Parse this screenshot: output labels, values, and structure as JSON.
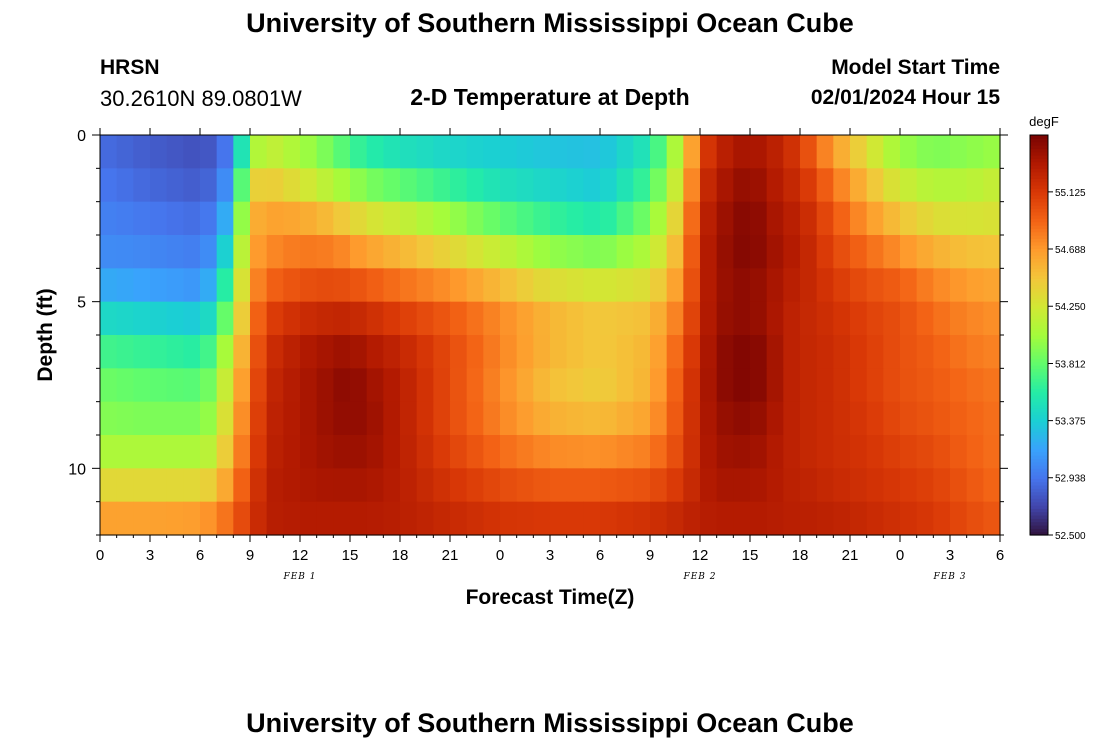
{
  "page": {
    "title_top": "University of Southern Mississippi Ocean Cube",
    "title_bottom": "University of Southern Mississippi Ocean Cube",
    "station_code": "HRSN",
    "coordinates": "30.2610N  89.0801W",
    "subtitle": "2-D Temperature at Depth",
    "model_start_label": "Model Start Time",
    "model_start_value": "02/01/2024 Hour 15"
  },
  "chart_data": {
    "type": "heatmap",
    "title": "2-D Temperature at Depth",
    "xlabel": "Forecast Time(Z)",
    "ylabel": "Depth (ft)",
    "x_ticks": [
      "0",
      "3",
      "6",
      "9",
      "12",
      "15",
      "18",
      "21",
      "0",
      "3",
      "6",
      "9",
      "12",
      "15",
      "18",
      "21",
      "0",
      "3",
      "6"
    ],
    "x_range_hours": [
      0,
      54
    ],
    "y_range_ft": [
      0,
      12
    ],
    "y_ticks": [
      0,
      5,
      10
    ],
    "y_reversed": true,
    "date_labels": [
      {
        "label": "FEB 1",
        "hour": 12
      },
      {
        "label": "FEB 2",
        "hour": 36
      },
      {
        "label": "FEB 3",
        "hour": 51
      }
    ],
    "colorbar": {
      "unit": "degF",
      "min": 52.5,
      "max": 55.56,
      "tick_values": [
        52.5,
        52.938,
        53.375,
        53.812,
        54.25,
        54.688,
        55.125
      ],
      "tick_labels": [
        "52.500",
        "52.938",
        "53.375",
        "53.812",
        "54.250",
        "54.688",
        "55.125"
      ],
      "colors": [
        "#30123b",
        "#4145ab",
        "#4675ed",
        "#39a2fc",
        "#1bcfd4",
        "#24eca6",
        "#61fc6c",
        "#a4fc3b",
        "#d1e834",
        "#f3c63a",
        "#fe9b2d",
        "#f36315",
        "#d93806",
        "#b11901",
        "#7a0402"
      ]
    },
    "grid": false,
    "temperature_degF": {
      "depths_ft": [
        0,
        1,
        2,
        3,
        4,
        5,
        6,
        7,
        8,
        9,
        10,
        11,
        12
      ],
      "hours": [
        0,
        3,
        6,
        7,
        8,
        9,
        10,
        12,
        14,
        15,
        16,
        18,
        21,
        24,
        27,
        30,
        33,
        35,
        36,
        37,
        38,
        39,
        40,
        41,
        42,
        44,
        46,
        48,
        50,
        52,
        54
      ],
      "values": [
        [
          52.9,
          52.8,
          52.75,
          52.8,
          53.0,
          53.8,
          54.1,
          54.0,
          53.8,
          53.6,
          53.5,
          53.4,
          53.35,
          53.35,
          53.3,
          53.3,
          53.5,
          54.2,
          55.0,
          55.2,
          55.3,
          55.35,
          55.3,
          55.25,
          55.05,
          54.6,
          54.2,
          53.9,
          53.8,
          53.8,
          53.8
        ],
        [
          52.9,
          52.85,
          52.8,
          52.85,
          53.1,
          54.2,
          54.3,
          54.1,
          53.9,
          53.8,
          53.7,
          53.6,
          53.5,
          53.4,
          53.35,
          53.3,
          53.6,
          54.3,
          55.1,
          55.3,
          55.4,
          55.45,
          55.35,
          55.25,
          55.15,
          54.75,
          54.45,
          54.1,
          54.0,
          54.1,
          54.2
        ],
        [
          53.0,
          52.9,
          52.85,
          52.95,
          53.3,
          54.5,
          54.6,
          54.5,
          54.3,
          54.2,
          54.1,
          54.0,
          53.8,
          53.6,
          53.5,
          53.4,
          53.8,
          54.45,
          55.2,
          55.35,
          55.45,
          55.5,
          55.4,
          55.3,
          55.25,
          54.95,
          54.6,
          54.35,
          54.2,
          54.15,
          54.2
        ],
        [
          53.0,
          53.0,
          52.95,
          53.05,
          53.5,
          54.6,
          54.7,
          54.75,
          54.7,
          54.6,
          54.5,
          54.4,
          54.2,
          54.0,
          53.8,
          53.7,
          54.0,
          54.6,
          55.25,
          55.4,
          55.5,
          55.55,
          55.45,
          55.35,
          55.3,
          55.0,
          54.8,
          54.6,
          54.45,
          54.4,
          54.4
        ],
        [
          53.1,
          53.05,
          53.0,
          53.2,
          53.8,
          54.65,
          54.8,
          54.9,
          54.9,
          54.85,
          54.8,
          54.7,
          54.55,
          54.35,
          54.15,
          54.1,
          54.2,
          54.7,
          55.25,
          55.4,
          55.5,
          55.5,
          55.45,
          55.35,
          55.3,
          55.1,
          54.95,
          54.85,
          54.7,
          54.6,
          54.55
        ],
        [
          53.3,
          53.25,
          53.2,
          53.4,
          54.0,
          54.7,
          55.0,
          55.1,
          55.15,
          55.15,
          55.1,
          55.0,
          54.9,
          54.7,
          54.5,
          54.4,
          54.45,
          54.8,
          55.25,
          55.4,
          55.45,
          55.45,
          55.4,
          55.3,
          55.25,
          55.15,
          55.05,
          55.0,
          54.85,
          54.75,
          54.7
        ],
        [
          53.6,
          53.55,
          53.5,
          53.7,
          54.2,
          54.8,
          55.15,
          55.3,
          55.35,
          55.35,
          55.3,
          55.2,
          55.0,
          54.8,
          54.6,
          54.5,
          54.55,
          54.95,
          55.25,
          55.45,
          55.5,
          55.5,
          55.45,
          55.3,
          55.25,
          55.2,
          55.1,
          55.0,
          54.9,
          54.8,
          54.75
        ],
        [
          53.8,
          53.75,
          53.7,
          53.9,
          54.4,
          54.85,
          55.2,
          55.35,
          55.45,
          55.5,
          55.4,
          55.3,
          55.05,
          54.75,
          54.5,
          54.4,
          54.55,
          55.0,
          55.3,
          55.45,
          55.55,
          55.55,
          55.5,
          55.3,
          55.25,
          55.2,
          55.1,
          55.0,
          54.95,
          54.85,
          54.8
        ],
        [
          53.9,
          53.85,
          53.85,
          54.0,
          54.5,
          54.9,
          55.25,
          55.35,
          55.45,
          55.5,
          55.45,
          55.3,
          55.0,
          54.75,
          54.5,
          54.45,
          54.6,
          55.05,
          55.3,
          55.45,
          55.5,
          55.5,
          55.45,
          55.3,
          55.25,
          55.2,
          55.1,
          55.0,
          54.95,
          54.9,
          54.85
        ],
        [
          53.95,
          53.95,
          53.95,
          54.1,
          54.6,
          54.95,
          55.25,
          55.35,
          55.45,
          55.45,
          55.45,
          55.3,
          55.05,
          54.8,
          54.65,
          54.6,
          54.7,
          55.05,
          55.3,
          55.4,
          55.45,
          55.45,
          55.4,
          55.3,
          55.25,
          55.2,
          55.15,
          55.05,
          55.0,
          54.9,
          54.85
        ],
        [
          54.2,
          54.2,
          54.2,
          54.3,
          54.7,
          55.0,
          55.3,
          55.35,
          55.4,
          55.4,
          55.4,
          55.3,
          55.1,
          54.95,
          54.85,
          54.85,
          54.9,
          55.1,
          55.3,
          55.4,
          55.4,
          55.4,
          55.35,
          55.3,
          55.25,
          55.2,
          55.15,
          55.1,
          55.05,
          54.95,
          54.85
        ],
        [
          54.5,
          54.5,
          54.5,
          54.6,
          54.85,
          55.1,
          55.3,
          55.35,
          55.35,
          55.35,
          55.35,
          55.3,
          55.2,
          55.1,
          55.05,
          55.05,
          55.1,
          55.2,
          55.3,
          55.35,
          55.35,
          55.35,
          55.35,
          55.3,
          55.3,
          55.25,
          55.2,
          55.15,
          55.1,
          55.0,
          54.9
        ],
        [
          54.8,
          54.8,
          54.85,
          54.9,
          55.0,
          55.15,
          55.3,
          55.3,
          55.3,
          55.3,
          55.3,
          55.3,
          55.25,
          55.2,
          55.2,
          55.2,
          55.25,
          55.3,
          55.3,
          55.3,
          55.3,
          55.3,
          55.3,
          55.3,
          55.3,
          55.3,
          55.25,
          55.2,
          55.15,
          55.05,
          55.0
        ]
      ]
    }
  }
}
